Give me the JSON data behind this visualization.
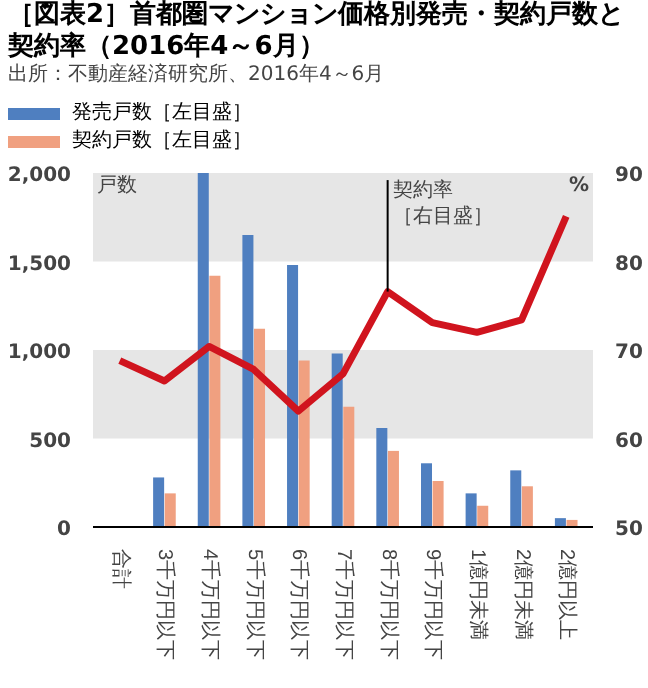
{
  "chart_data": {
    "type": "bar",
    "title": "［図表2］首都圏マンション価格別発売・契約戸数と契約率（2016年4～6月）",
    "subtitle": "出所：不動産経済研究所、2016年4～6月",
    "ylabel": "戸数",
    "y2label": "%",
    "categories": [
      "合計",
      "3千万円以下",
      "4千万円以下",
      "5千万円以下",
      "6千万円以下",
      "7千万円以下",
      "8千万円以下",
      "9千万円以下",
      "1億円未満",
      "2億円未満",
      "2億円以上"
    ],
    "series": [
      {
        "name": "発売戸数［左目盛］",
        "color": "#4f7fc0",
        "values": [
          null,
          280,
          2000,
          1650,
          1480,
          980,
          560,
          360,
          190,
          320,
          50
        ]
      },
      {
        "name": "契約戸数［左目盛］",
        "color": "#f0a080",
        "values": [
          null,
          190,
          1420,
          1120,
          940,
          680,
          430,
          260,
          120,
          230,
          40
        ]
      },
      {
        "type": "line",
        "axis": "y2",
        "color": "#d0141e",
        "values": [
          68.8,
          66.5,
          70.4,
          67.8,
          63.1,
          67.3,
          76.6,
          73.1,
          72.0,
          73.4,
          85.1
        ]
      }
    ],
    "ylim": [
      0,
      2000
    ],
    "yticks": [
      0,
      500,
      {
        "value": 1000,
        "label": "1,000"
      },
      {
        "value": 1500,
        "label": "1,500"
      },
      {
        "value": 2000,
        "label": "2,000"
      }
    ],
    "y2lim": [
      50,
      90
    ],
    "y2ticks": [
      50,
      60,
      70,
      80,
      90
    ],
    "annotations": [
      {
        "text": "契約率［右目盛］",
        "x": "8千万円以下",
        "y": 1330
      }
    ],
    "bands": [
      {
        "axis": "y",
        "from": 500,
        "to": 1000,
        "color": "#e6e6e6"
      },
      {
        "axis": "y",
        "from": 1500,
        "to": 2000,
        "color": "#e6e6e6"
      }
    ],
    "legend": "top left"
  }
}
